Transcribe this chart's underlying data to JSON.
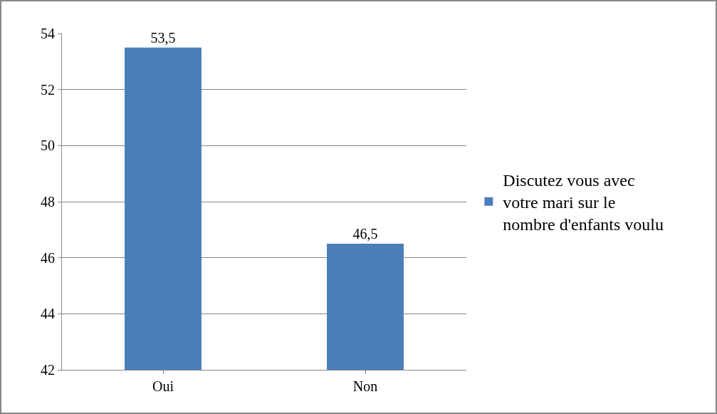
{
  "chart_data": {
    "type": "bar",
    "categories": [
      "Oui",
      "Non"
    ],
    "series": [
      {
        "name": "Discutez vous avec votre mari sur le nombre d'enfants voulu",
        "color": "#4a7ebb",
        "values": [
          53.5,
          46.5
        ],
        "value_labels": [
          "53,5",
          "46,5"
        ]
      }
    ],
    "ylim": [
      42,
      54
    ],
    "yticks": [
      42,
      44,
      46,
      48,
      50,
      52,
      54
    ],
    "grid": "y",
    "legend": "right"
  }
}
